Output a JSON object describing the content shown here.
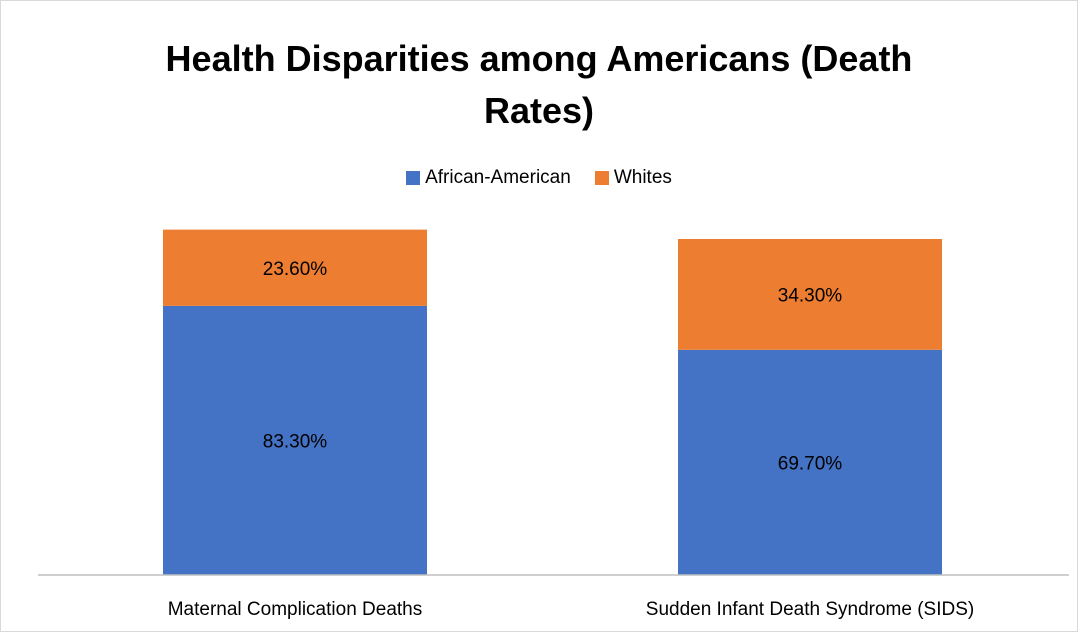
{
  "chart_data": {
    "type": "bar",
    "stacked": true,
    "title": "Health Disparities among Americans (Death Rates)",
    "title_lines": [
      "Health Disparities among Americans (Death",
      "Rates)"
    ],
    "categories": [
      "Maternal Complication Deaths",
      "Sudden Infant Death Syndrome (SIDS)"
    ],
    "series": [
      {
        "name": "African-American",
        "values": [
          83.3,
          69.7
        ],
        "labels": [
          "83.30%",
          "69.70%"
        ],
        "color": "#4472c4"
      },
      {
        "name": "Whites",
        "values": [
          23.6,
          34.3
        ],
        "labels": [
          "23.60%",
          "34.30%"
        ],
        "color": "#ed7d31"
      }
    ],
    "ylim": [
      0,
      130
    ],
    "legend_position": "top",
    "grid": false
  }
}
